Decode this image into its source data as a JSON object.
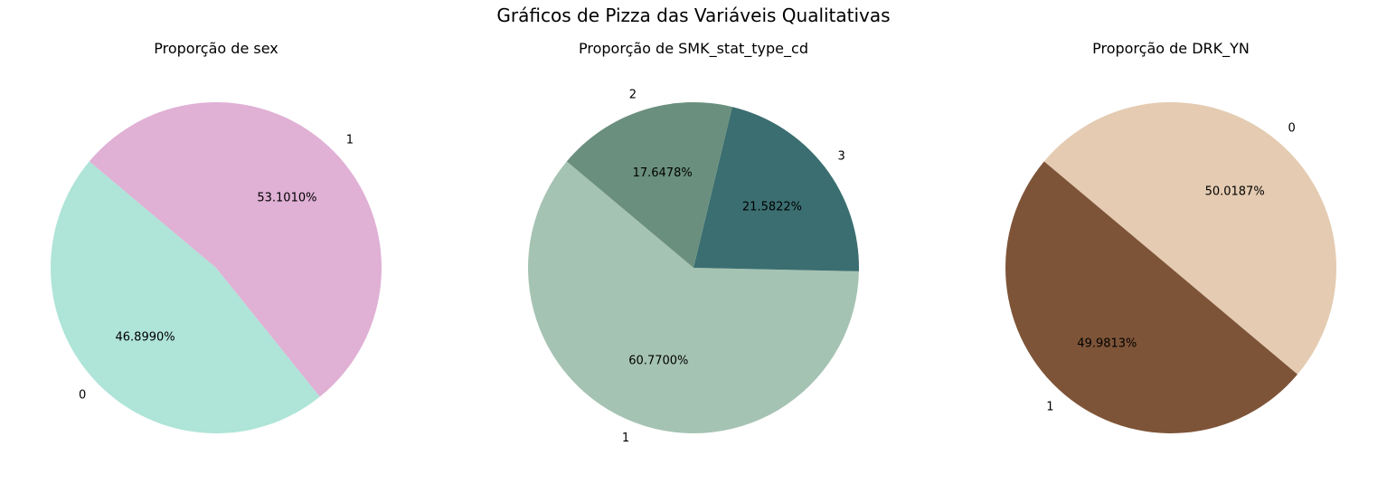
{
  "figure": {
    "title": "Gráficos de Pizza das Variáveis Qualitativas"
  },
  "chart_data": [
    {
      "type": "pie",
      "title": "Proporção de sex",
      "start_angle_deg": 140,
      "slices": [
        {
          "label": "0",
          "value": 46.899,
          "pct_label": "46.8990%",
          "color": "#afe4d8"
        },
        {
          "label": "1",
          "value": 53.101,
          "pct_label": "53.1010%",
          "color": "#e0b0d5"
        }
      ]
    },
    {
      "type": "pie",
      "title": "Proporção de SMK_stat_type_cd",
      "start_angle_deg": 140,
      "slices": [
        {
          "label": "1",
          "value": 60.77,
          "pct_label": "60.7700%",
          "color": "#a5c3b3"
        },
        {
          "label": "3",
          "value": 21.5822,
          "pct_label": "21.5822%",
          "color": "#3b6e70"
        },
        {
          "label": "2",
          "value": 17.6478,
          "pct_label": "17.6478%",
          "color": "#6a8f7e"
        }
      ]
    },
    {
      "type": "pie",
      "title": "Proporção de DRK_YN",
      "start_angle_deg": 140,
      "slices": [
        {
          "label": "1",
          "value": 49.9813,
          "pct_label": "49.9813%",
          "color": "#7e5438"
        },
        {
          "label": "0",
          "value": 50.0187,
          "pct_label": "50.0187%",
          "color": "#e4cbb1"
        }
      ]
    }
  ]
}
